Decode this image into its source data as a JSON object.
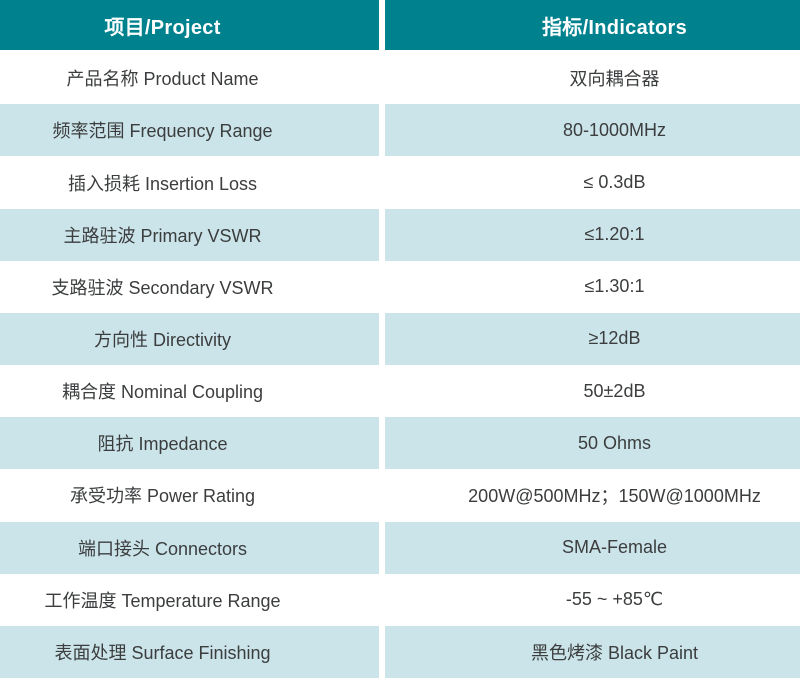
{
  "colors": {
    "header_bg": "#00828e",
    "alt_row_bg": "#cbe4e9",
    "header_text": "#ffffff",
    "body_text": "#3b3d3e"
  },
  "table": {
    "header": {
      "project": "项目/Project",
      "indicators": "指标/Indicators"
    },
    "rows": [
      {
        "project": "产品名称 Product Name",
        "indicator": "双向耦合器"
      },
      {
        "project": "频率范围 Frequency Range",
        "indicator": "80-1000MHz"
      },
      {
        "project": "插入损耗 Insertion Loss",
        "indicator": "≤ 0.3dB"
      },
      {
        "project": "主路驻波 Primary VSWR",
        "indicator": "≤1.20:1"
      },
      {
        "project": "支路驻波 Secondary VSWR",
        "indicator": "≤1.30:1"
      },
      {
        "project": "方向性 Directivity",
        "indicator": "≥12dB"
      },
      {
        "project": "耦合度 Nominal Coupling",
        "indicator": "50±2dB"
      },
      {
        "project": "阻抗 Impedance",
        "indicator": "50 Ohms"
      },
      {
        "project": "承受功率 Power Rating",
        "indicator": "200W@500MHz；150W@1000MHz"
      },
      {
        "project": "端口接头 Connectors",
        "indicator": "SMA-Female"
      },
      {
        "project": "工作温度 Temperature Range",
        "indicator": "-55 ~ +85℃"
      },
      {
        "project": "表面处理 Surface Finishing",
        "indicator": "黑色烤漆 Black Paint"
      }
    ]
  }
}
